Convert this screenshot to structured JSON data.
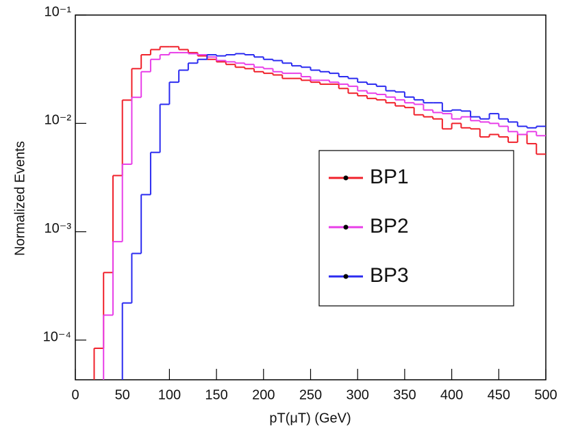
{
  "chart_data": {
    "type": "histogram",
    "x_label": "pT(μT) (GeV)",
    "y_label": "Normalized Events",
    "log_y": true,
    "bins": [
      0,
      10,
      20,
      30,
      40,
      50,
      60,
      70,
      80,
      90,
      100,
      110,
      120,
      130,
      140,
      150,
      160,
      170,
      180,
      190,
      200,
      210,
      220,
      230,
      240,
      250,
      260,
      270,
      280,
      290,
      300,
      310,
      320,
      330,
      340,
      350,
      360,
      370,
      380,
      390,
      400,
      410,
      420,
      430,
      440,
      450,
      460,
      470,
      480,
      490,
      500
    ],
    "xlim": [
      0,
      500
    ],
    "xticks": [
      0,
      50,
      100,
      150,
      200,
      250,
      300,
      350,
      400,
      450,
      500
    ],
    "ylim": [
      4.3e-05,
      0.1
    ],
    "yticks": [
      {
        "value": 0.0001,
        "label": "10⁻⁴"
      },
      {
        "value": 0.001,
        "label": "10⁻³"
      },
      {
        "value": 0.01,
        "label": "10⁻²"
      },
      {
        "value": 0.1,
        "label": "10⁻¹"
      }
    ],
    "series": [
      {
        "name": "BP1",
        "color": "#f0202a",
        "values": [
          null,
          null,
          8.4e-05,
          0.00042,
          0.0033,
          0.0164,
          0.032,
          0.043,
          0.048,
          0.051,
          0.051,
          0.048,
          0.045,
          0.042,
          0.039,
          0.037,
          0.035,
          0.033,
          0.032,
          0.03,
          0.029,
          0.028,
          0.026,
          0.026,
          0.025,
          0.024,
          0.023,
          0.023,
          0.021,
          0.019,
          0.018,
          0.017,
          0.0165,
          0.0155,
          0.0145,
          0.014,
          0.012,
          0.0115,
          0.011,
          0.0089,
          0.01,
          0.0091,
          0.0089,
          0.0075,
          0.0079,
          0.0075,
          0.0067,
          0.0079,
          0.0065,
          0.0052
        ]
      },
      {
        "name": "BP2",
        "color": "#e83ee8",
        "values": [
          null,
          null,
          null,
          0.00017,
          0.00081,
          0.0042,
          0.0174,
          0.03,
          0.039,
          0.043,
          0.045,
          0.045,
          0.044,
          0.043,
          0.041,
          0.038,
          0.037,
          0.036,
          0.035,
          0.033,
          0.032,
          0.03,
          0.029,
          0.029,
          0.027,
          0.025,
          0.025,
          0.024,
          0.023,
          0.022,
          0.02,
          0.019,
          0.0185,
          0.0175,
          0.0165,
          0.0155,
          0.015,
          0.0133,
          0.0126,
          0.0123,
          0.011,
          0.0115,
          0.0106,
          0.0103,
          0.01,
          0.0094,
          0.0084,
          0.0079,
          0.0084,
          0.0077
        ]
      },
      {
        "name": "BP3",
        "color": "#2a2af0",
        "values": [
          null,
          null,
          null,
          null,
          null,
          0.00022,
          0.00063,
          0.0022,
          0.0054,
          0.015,
          0.024,
          0.031,
          0.036,
          0.039,
          0.043,
          0.042,
          0.043,
          0.044,
          0.043,
          0.041,
          0.039,
          0.038,
          0.036,
          0.034,
          0.033,
          0.031,
          0.03,
          0.029,
          0.027,
          0.026,
          0.024,
          0.023,
          0.022,
          0.02,
          0.0195,
          0.0175,
          0.0165,
          0.0155,
          0.0155,
          0.013,
          0.0133,
          0.013,
          0.0115,
          0.011,
          0.0123,
          0.011,
          0.0103,
          0.0094,
          0.0091,
          0.0094
        ]
      }
    ]
  }
}
